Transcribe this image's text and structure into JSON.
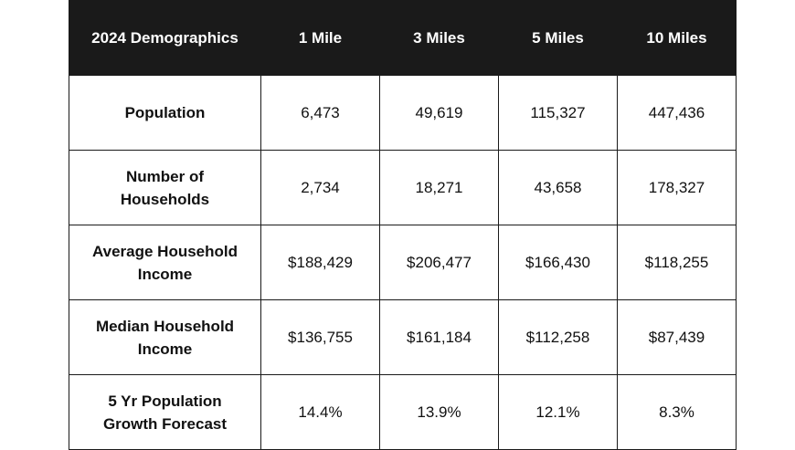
{
  "table": {
    "headers": [
      "2024 Demographics",
      "1 Mile",
      "3 Miles",
      "5 Miles",
      "10 Miles"
    ],
    "rows": [
      {
        "label": "Population",
        "values": [
          "6,473",
          "49,619",
          "115,327",
          "447,436"
        ]
      },
      {
        "label": "Number of Households",
        "values": [
          "2,734",
          "18,271",
          "43,658",
          "178,327"
        ]
      },
      {
        "label": "Average Household Income",
        "values": [
          "$188,429",
          "$206,477",
          "$166,430",
          "$118,255"
        ]
      },
      {
        "label": "Median Household Income",
        "values": [
          "$136,755",
          "$161,184",
          "$112,258",
          "$87,439"
        ]
      },
      {
        "label": "5 Yr Population Growth Forecast",
        "values": [
          "14.4%",
          "13.9%",
          "12.1%",
          "8.3%"
        ]
      }
    ],
    "colors": {
      "header_background": "#1a1a1a",
      "header_text": "#ffffff",
      "border": "#1a1a1a",
      "body_text": "#111111",
      "background": "#ffffff"
    }
  }
}
